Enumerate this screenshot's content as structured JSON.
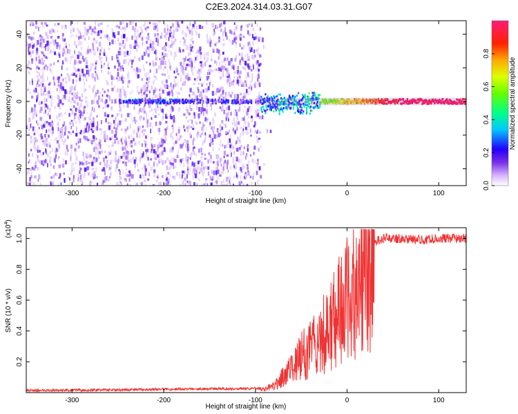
{
  "title": "C2E3.2024.314.03.31.G07",
  "chart_data": [
    {
      "type": "heatmap",
      "xlabel": "Height of straight line (km)",
      "ylabel": "Frequency (Hz)",
      "xlim": [
        -350,
        130
      ],
      "ylim": [
        -50,
        48
      ],
      "x_ticks": [
        -300,
        -200,
        -100,
        0,
        100
      ],
      "x_tick_labels": [
        "-300",
        "-200",
        "-100",
        "0",
        "100"
      ],
      "y_ticks": [
        -40,
        -20,
        0,
        20,
        40
      ],
      "y_tick_labels": [
        "-40",
        "-20",
        "0",
        "20",
        "40"
      ],
      "colorbar": {
        "label": "Normalized spectral amplitude",
        "range": [
          0,
          1
        ],
        "ticks": [
          0.0,
          0.2,
          0.4,
          0.6,
          0.8
        ],
        "tick_labels": [
          "0.0",
          "0.2",
          "0.4",
          "0.6",
          "0.8"
        ]
      },
      "features": {
        "noise_region_x": [
          -350,
          -95
        ],
        "signal_line_frequency": 0,
        "strong_signal_x_start": -30
      },
      "grid": false
    },
    {
      "type": "line",
      "xlabel": "Height of straight line (km)",
      "ylabel": "SNR (10 * v/v)",
      "y_multiplier": "(x10",
      "y_multiplier_exp": "4",
      "y_multiplier_close": ")",
      "xlim": [
        -350,
        130
      ],
      "ylim": [
        0,
        1.07
      ],
      "x_ticks": [
        -300,
        -200,
        -100,
        0,
        100
      ],
      "x_tick_labels": [
        "-300",
        "-200",
        "-100",
        "0",
        "100"
      ],
      "y_ticks": [
        0.2,
        0.4,
        0.6,
        0.8,
        1.0
      ],
      "y_tick_labels": [
        "0.2",
        "0.4",
        "0.6",
        "0.8",
        "1.0"
      ],
      "series": [
        {
          "color": "#ee3333",
          "x": [
            -350,
            -300,
            -250,
            -200,
            -150,
            -110,
            -90,
            -80,
            -70,
            -60,
            -50,
            -40,
            -30,
            -20,
            -10,
            0,
            10,
            20,
            30,
            40,
            60,
            80,
            100,
            130
          ],
          "y": [
            0.015,
            0.015,
            0.018,
            0.022,
            0.025,
            0.025,
            0.03,
            0.05,
            0.12,
            0.2,
            0.28,
            0.35,
            0.42,
            0.5,
            0.62,
            0.72,
            0.82,
            0.92,
            0.98,
            1.0,
            1.0,
            0.99,
            1.0,
            1.0
          ]
        }
      ],
      "grid": false
    }
  ]
}
